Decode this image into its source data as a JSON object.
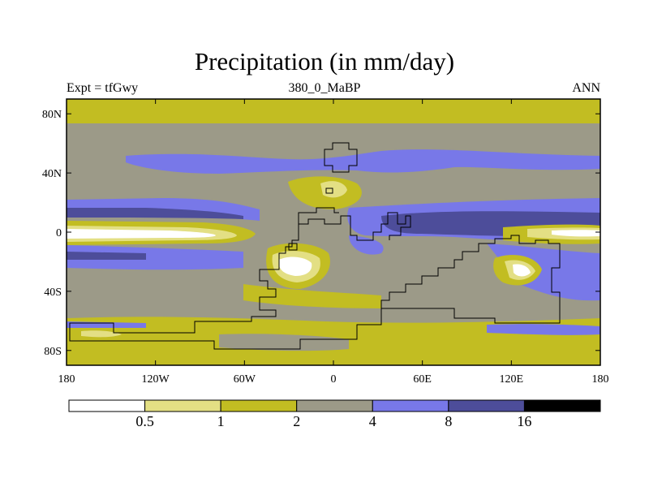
{
  "title": "Precipitation (in mm/day)",
  "subtitle_left": "Expt = tfGwy",
  "subtitle_center": "380_0_MaBP",
  "subtitle_right": "ANN",
  "lat_ticks": [
    {
      "label": "80N",
      "lat": 80
    },
    {
      "label": "40N",
      "lat": 40
    },
    {
      "label": "0",
      "lat": 0
    },
    {
      "label": "40S",
      "lat": -40
    },
    {
      "label": "80S",
      "lat": -80
    }
  ],
  "lon_ticks": [
    {
      "label": "180",
      "lon": -180
    },
    {
      "label": "120W",
      "lon": -120
    },
    {
      "label": "60W",
      "lon": -60
    },
    {
      "label": "0",
      "lon": 0
    },
    {
      "label": "60E",
      "lon": 60
    },
    {
      "label": "120E",
      "lon": 120
    },
    {
      "label": "180",
      "lon": 180
    }
  ],
  "colorbar": {
    "levels": [
      "0.5",
      "1",
      "2",
      "4",
      "8",
      "16"
    ],
    "colors": [
      "#ffffff",
      "#e3df84",
      "#c2bd22",
      "#9c9a88",
      "#7878e8",
      "#4d4d9a",
      "#000000"
    ]
  },
  "ocean_colors": {
    "c0": "#ffffff",
    "c1": "#e3df84",
    "c2": "#c2bd22",
    "c3": "#9c9a88",
    "c4": "#7878e8",
    "c5": "#4d4d9a"
  }
}
